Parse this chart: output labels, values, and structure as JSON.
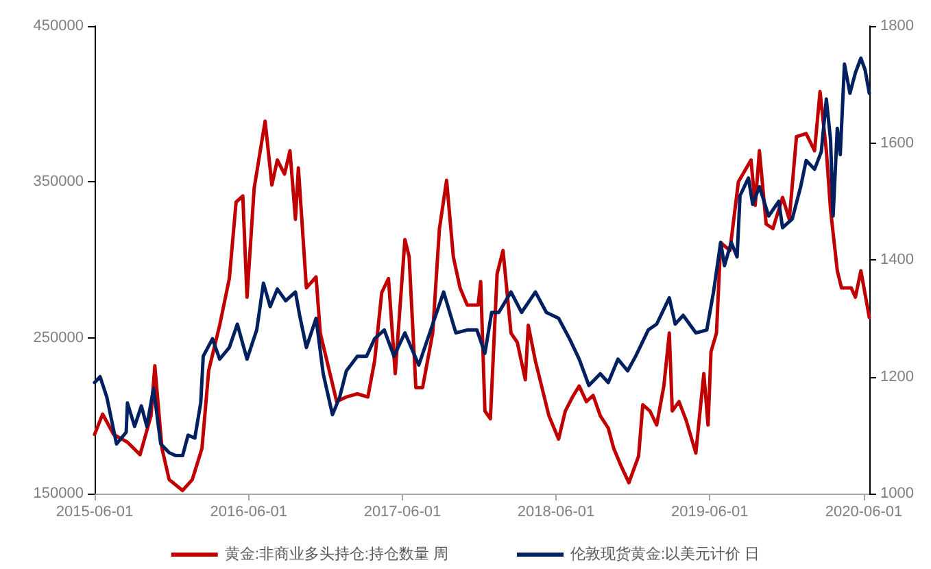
{
  "chart_data": {
    "type": "line",
    "xlim": [
      "2015-06-01",
      "2020-06-14"
    ],
    "xticks": [
      "2015-06-01",
      "2016-06-01",
      "2017-06-01",
      "2018-06-01",
      "2019-06-01",
      "2020-06-01"
    ],
    "ylim": [
      150000,
      450000
    ],
    "yticks": [
      150000,
      250000,
      350000,
      450000
    ],
    "y2lim": [
      1000,
      1800
    ],
    "y2ticks": [
      1000,
      1200,
      1400,
      1600,
      1800
    ],
    "legend": "bottom",
    "grid": false,
    "marker": "none",
    "line_style": "solid",
    "series": [
      {
        "name": "黄金:非商业多头持仓:持仓数量 周",
        "color": "#c00000",
        "x": [
          "2015-06-01",
          "2015-06-20",
          "2015-07-16",
          "2015-08-18",
          "2015-09-17",
          "2015-10-13",
          "2015-10-22",
          "2015-11-08",
          "2015-11-25",
          "2015-12-27",
          "2016-01-19",
          "2016-02-11",
          "2016-02-27",
          "2016-03-24",
          "2016-04-16",
          "2016-05-02",
          "2016-05-18",
          "2016-05-28",
          "2016-06-14",
          "2016-07-10",
          "2016-07-26",
          "2016-08-08",
          "2016-08-25",
          "2016-09-07",
          "2016-09-20",
          "2016-09-27",
          "2016-10-16",
          "2016-11-08",
          "2016-11-18",
          "2016-12-11",
          "2016-12-27",
          "2017-01-19",
          "2017-02-14",
          "2017-03-11",
          "2017-03-27",
          "2017-04-13",
          "2017-04-29",
          "2017-05-15",
          "2017-06-07",
          "2017-06-17",
          "2017-07-03",
          "2017-07-19",
          "2017-08-12",
          "2017-08-28",
          "2017-09-14",
          "2017-09-30",
          "2017-10-16",
          "2017-11-02",
          "2017-11-28",
          "2017-12-04",
          "2017-12-14",
          "2017-12-27",
          "2018-01-12",
          "2018-01-26",
          "2018-02-14",
          "2018-03-01",
          "2018-03-20",
          "2018-03-27",
          "2018-04-13",
          "2018-05-15",
          "2018-06-07",
          "2018-06-23",
          "2018-07-10",
          "2018-07-26",
          "2018-08-12",
          "2018-08-28",
          "2018-09-14",
          "2018-10-03",
          "2018-10-16",
          "2018-11-02",
          "2018-11-21",
          "2018-12-14",
          "2018-12-24",
          "2019-01-10",
          "2019-01-26",
          "2019-02-12",
          "2019-02-25",
          "2019-03-04",
          "2019-03-20",
          "2019-04-06",
          "2019-04-29",
          "2019-05-18",
          "2019-05-28",
          "2019-06-04",
          "2019-06-17",
          "2019-06-27",
          "2019-07-19",
          "2019-08-08",
          "2019-09-07",
          "2019-09-17",
          "2019-09-27",
          "2019-10-13",
          "2019-10-29",
          "2019-11-21",
          "2019-12-07",
          "2019-12-24",
          "2020-01-16",
          "2020-02-05",
          "2020-02-18",
          "2020-03-04",
          "2020-03-14",
          "2020-03-30",
          "2020-04-09",
          "2020-05-02",
          "2020-05-12",
          "2020-05-25",
          "2020-06-14"
        ],
        "values": [
          188000,
          201000,
          188000,
          183000,
          175000,
          200000,
          232000,
          179000,
          159000,
          152000,
          159000,
          179000,
          229000,
          258000,
          288000,
          337000,
          341000,
          276000,
          346000,
          389000,
          348000,
          364000,
          355000,
          370000,
          326000,
          359000,
          282000,
          289000,
          253000,
          227000,
          209000,
          212000,
          214000,
          212000,
          235000,
          279000,
          288000,
          227000,
          313000,
          302000,
          218000,
          218000,
          253000,
          320000,
          351000,
          302000,
          282000,
          271000,
          271000,
          286000,
          203000,
          198000,
          291000,
          306000,
          253000,
          247000,
          223000,
          258000,
          235000,
          200000,
          185000,
          203000,
          212000,
          219000,
          209000,
          213000,
          200000,
          192000,
          179000,
          168000,
          157000,
          174000,
          207000,
          203000,
          194000,
          219000,
          253000,
          203000,
          209000,
          197000,
          176000,
          227000,
          194000,
          241000,
          253000,
          311000,
          306000,
          350000,
          364000,
          335000,
          370000,
          323000,
          320000,
          340000,
          326000,
          379000,
          381000,
          370000,
          408000,
          370000,
          332000,
          293000,
          282000,
          282000,
          276000,
          293000,
          263000
        ]
      },
      {
        "name": "伦敦现货黄金:以美元计价 日",
        "color": "#002060",
        "axis": "y2",
        "x": [
          "2015-06-01",
          "2015-06-14",
          "2015-06-30",
          "2015-07-23",
          "2015-08-15",
          "2015-08-18",
          "2015-09-04",
          "2015-09-20",
          "2015-10-03",
          "2015-10-19",
          "2015-11-05",
          "2015-11-25",
          "2015-12-11",
          "2015-12-27",
          "2016-01-09",
          "2016-01-25",
          "2016-02-08",
          "2016-02-14",
          "2016-03-07",
          "2016-03-24",
          "2016-04-16",
          "2016-05-05",
          "2016-05-28",
          "2016-06-20",
          "2016-07-06",
          "2016-07-22",
          "2016-08-08",
          "2016-08-28",
          "2016-09-20",
          "2016-09-30",
          "2016-10-16",
          "2016-11-08",
          "2016-11-25",
          "2016-12-17",
          "2017-01-03",
          "2017-01-19",
          "2017-02-14",
          "2017-03-08",
          "2017-03-27",
          "2017-04-19",
          "2017-05-12",
          "2017-06-07",
          "2017-07-10",
          "2017-08-05",
          "2017-09-07",
          "2017-10-06",
          "2017-11-02",
          "2017-11-25",
          "2017-12-14",
          "2017-12-30",
          "2018-01-16",
          "2018-02-14",
          "2018-03-11",
          "2018-04-13",
          "2018-05-09",
          "2018-06-07",
          "2018-07-03",
          "2018-07-26",
          "2018-08-18",
          "2018-09-14",
          "2018-10-03",
          "2018-10-26",
          "2018-11-18",
          "2018-12-07",
          "2019-01-06",
          "2019-01-26",
          "2019-02-25",
          "2019-03-11",
          "2019-03-30",
          "2019-04-29",
          "2019-05-25",
          "2019-06-10",
          "2019-06-27",
          "2019-07-06",
          "2019-07-22",
          "2019-08-05",
          "2019-08-12",
          "2019-09-01",
          "2019-09-11",
          "2019-09-27",
          "2019-10-19",
          "2019-11-12",
          "2019-11-21",
          "2019-12-14",
          "2020-01-03",
          "2020-01-16",
          "2020-02-05",
          "2020-02-21",
          "2020-03-04",
          "2020-03-14",
          "2020-03-20",
          "2020-03-30",
          "2020-04-06",
          "2020-04-16",
          "2020-04-29",
          "2020-05-12",
          "2020-05-25",
          "2020-06-04",
          "2020-06-14"
        ],
        "values": [
          1190,
          1200,
          1165,
          1085,
          1105,
          1155,
          1115,
          1150,
          1115,
          1180,
          1085,
          1070,
          1065,
          1065,
          1100,
          1095,
          1155,
          1235,
          1265,
          1230,
          1250,
          1290,
          1230,
          1280,
          1360,
          1320,
          1350,
          1330,
          1345,
          1305,
          1250,
          1300,
          1205,
          1135,
          1165,
          1210,
          1235,
          1235,
          1265,
          1280,
          1235,
          1275,
          1220,
          1275,
          1345,
          1275,
          1280,
          1280,
          1240,
          1310,
          1310,
          1345,
          1310,
          1345,
          1310,
          1300,
          1265,
          1230,
          1185,
          1205,
          1190,
          1230,
          1210,
          1235,
          1280,
          1290,
          1335,
          1290,
          1305,
          1275,
          1280,
          1345,
          1430,
          1390,
          1430,
          1405,
          1510,
          1540,
          1495,
          1525,
          1475,
          1500,
          1455,
          1470,
          1525,
          1570,
          1555,
          1585,
          1675,
          1605,
          1475,
          1625,
          1580,
          1735,
          1685,
          1720,
          1745,
          1725,
          1685
        ]
      }
    ]
  }
}
